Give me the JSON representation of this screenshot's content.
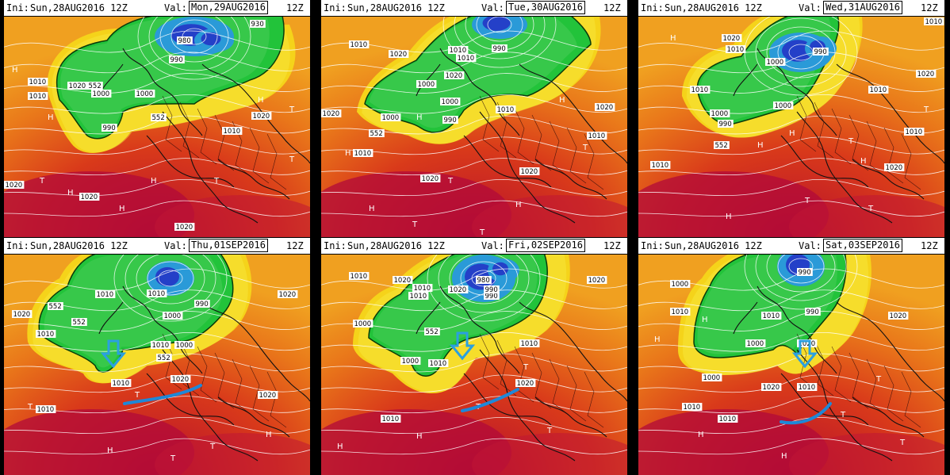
{
  "panels": [
    {
      "ini_label": "Ini:",
      "ini": "Sun,28AUG2016 12Z",
      "val_label": "Val:",
      "val": "Mon,29AUG2016",
      "val_hour": "12Z",
      "labels": [
        "930",
        "980",
        "990",
        "1010",
        "1020",
        "552",
        "1000",
        "1000",
        "990",
        "552",
        "1010",
        "1010",
        "1020",
        "1020",
        "1020",
        "1020"
      ]
    },
    {
      "ini_label": "Ini:",
      "ini": "Sun,28AUG2016 12Z",
      "val_label": "Val:",
      "val": "Tue,30AUG2016",
      "val_hour": "12Z",
      "labels": [
        "1010",
        "1020",
        "1010",
        "1010",
        "990",
        "1020",
        "1000",
        "1000",
        "1000",
        "990",
        "552",
        "1010",
        "1020",
        "1020",
        "1010",
        "1010",
        "1020",
        "1020"
      ]
    },
    {
      "ini_label": "Ini:",
      "ini": "Sun,28AUG2016 12Z",
      "val_label": "Val:",
      "val": "Wed,31AUG2016",
      "val_hour": "12Z",
      "labels": [
        "1020",
        "1010",
        "1000",
        "990",
        "1010",
        "1010",
        "1000",
        "1000",
        "990",
        "552",
        "1010",
        "1020",
        "1020",
        "1010",
        "1010"
      ]
    },
    {
      "ini_label": "Ini:",
      "ini": "Sun,28AUG2016 12Z",
      "val_label": "Val:",
      "val": "Thu,01SEP2016",
      "val_hour": "12Z",
      "labels": [
        "1010",
        "1010",
        "990",
        "1000",
        "552",
        "552",
        "1020",
        "1010",
        "1010",
        "1000",
        "552",
        "1010",
        "1020",
        "1020",
        "1010",
        "1020"
      ]
    },
    {
      "ini_label": "Ini:",
      "ini": "Sun,28AUG2016 12Z",
      "val_label": "Val:",
      "val": "Fri,02SEP2016",
      "val_hour": "12Z",
      "labels": [
        "1010",
        "1020",
        "1010",
        "1010",
        "990",
        "980",
        "990",
        "1020",
        "1020",
        "1000",
        "552",
        "1000",
        "1010",
        "1010",
        "1020",
        "1010"
      ]
    },
    {
      "ini_label": "Ini:",
      "ini": "Sun,28AUG2016 12Z",
      "val_label": "Val:",
      "val": "Sat,03SEP2016",
      "val_hour": "12Z",
      "labels": [
        "990",
        "1000",
        "1010",
        "1010",
        "1020",
        "990",
        "1000",
        "1020",
        "1000",
        "1010",
        "1010",
        "1020",
        "1010"
      ]
    }
  ],
  "symbols": {
    "high": "H",
    "low": "T"
  },
  "colors": {
    "trough_arrow": "#2aa0e0",
    "front_line": "#1e88d8"
  }
}
